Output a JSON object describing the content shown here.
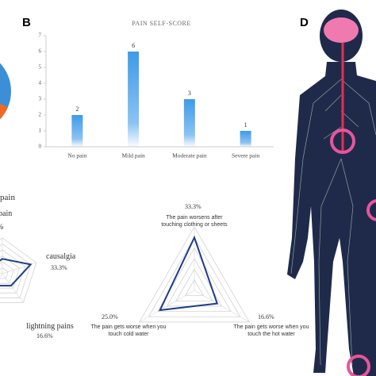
{
  "panel_labels": [
    "B",
    "D"
  ],
  "chart_data": [
    {
      "type": "bar",
      "title": "PAIN SELF-SCORE",
      "categories": [
        "No pain",
        "Mild pain",
        "Moderate pain",
        "Severe pain"
      ],
      "values": [
        2,
        6,
        3,
        1
      ],
      "color": "#3d9be9",
      "ylim": [
        0,
        7
      ],
      "yticks": [
        0,
        1,
        2,
        3,
        4,
        5,
        6,
        7
      ]
    },
    {
      "type": "radar",
      "categories": [
        "pain",
        "causalgia",
        "lightning pains",
        null,
        null
      ],
      "values": [
        16.6,
        33.3,
        16.6,
        16.6,
        16.6
      ],
      "value_labels": [
        null,
        "33.3%",
        "16.6%",
        null,
        null
      ],
      "annotations": [
        "pain",
        "%"
      ],
      "rlim": [
        0,
        40
      ],
      "direction": "clockwise",
      "color": "#1f3c88"
    },
    {
      "type": "radar",
      "categories": [
        "The pain worsens after touching clothing or sheets",
        "The pain gets worse when you touch cold water",
        "The pain gets worse when you touch the hot water"
      ],
      "values": [
        33.3,
        25.0,
        16.6
      ],
      "value_labels": [
        "33.3%",
        "25.0%",
        "16.6%"
      ],
      "rlim": [
        0,
        40
      ],
      "direction": "counterclockwise",
      "color": "#1f3c88"
    }
  ]
}
